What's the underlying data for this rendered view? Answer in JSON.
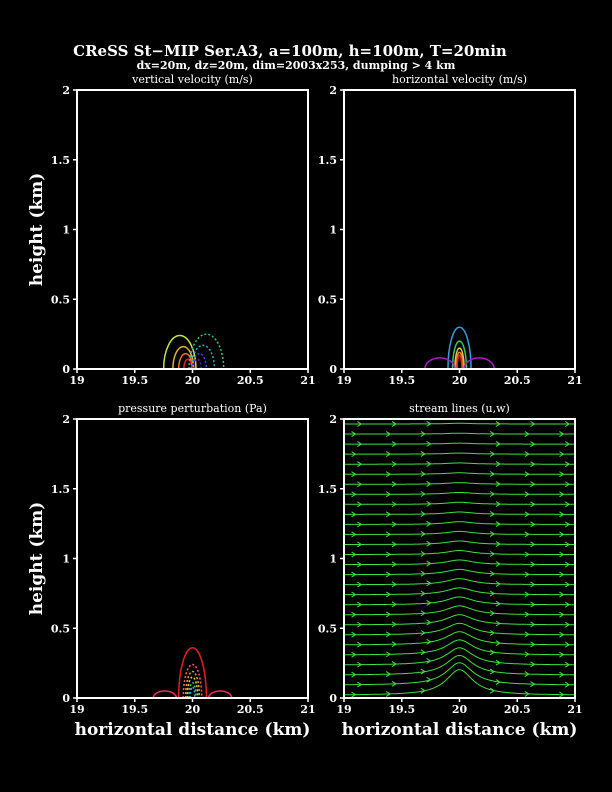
{
  "title": "CReSS St−MIP Ser.A3, a=100m, h=100m, T=20min",
  "subtitle": "dx=20m, dz=20m, dim=2003x253, dumping > 4 km",
  "chart_data": [
    {
      "type": "contour",
      "title": "vertical velocity (m/s)",
      "xlabel": "",
      "ylabel": "height (km)",
      "xlim": [
        19,
        21
      ],
      "ylim": [
        0,
        2
      ],
      "xticks": [
        "19",
        "19.5",
        "20",
        "20.5",
        "21"
      ],
      "yticks": [
        "0",
        "0.5",
        "1",
        "1.5",
        "2"
      ],
      "contours": [
        {
          "cx": 19.89,
          "rx": 0.14,
          "h": 0.24,
          "color": "#c8e640",
          "dash": false
        },
        {
          "cx": 19.92,
          "rx": 0.09,
          "h": 0.16,
          "color": "#e0b040",
          "dash": false
        },
        {
          "cx": 19.94,
          "rx": 0.06,
          "h": 0.11,
          "color": "#f07030",
          "dash": false
        },
        {
          "cx": 19.96,
          "rx": 0.035,
          "h": 0.07,
          "color": "#e02020",
          "dash": false
        },
        {
          "cx": 20.12,
          "rx": 0.15,
          "h": 0.25,
          "color": "#30c080",
          "dash": true
        },
        {
          "cx": 20.09,
          "rx": 0.1,
          "h": 0.17,
          "color": "#30a8c0",
          "dash": true
        },
        {
          "cx": 20.06,
          "rx": 0.06,
          "h": 0.11,
          "color": "#3050e0",
          "dash": true
        },
        {
          "cx": 20.04,
          "rx": 0.035,
          "h": 0.07,
          "color": "#6020c0",
          "dash": true
        }
      ]
    },
    {
      "type": "contour",
      "title": "horizontal velocity (m/s)",
      "xlabel": "",
      "ylabel": "",
      "xlim": [
        19,
        21
      ],
      "ylim": [
        0,
        2
      ],
      "xticks": [
        "19",
        "19.5",
        "20",
        "20.5",
        "21"
      ],
      "yticks": [
        "0",
        "0.5",
        "1",
        "1.5",
        "2"
      ],
      "contours": [
        {
          "cx": 20.0,
          "rx": 0.1,
          "h": 0.3,
          "color": "#30a0e0",
          "dash": false
        },
        {
          "cx": 20.0,
          "rx": 0.06,
          "h": 0.2,
          "color": "#40c060",
          "dash": false
        },
        {
          "cx": 20.0,
          "rx": 0.04,
          "h": 0.15,
          "color": "#d0d040",
          "dash": false
        },
        {
          "cx": 20.0,
          "rx": 0.03,
          "h": 0.12,
          "color": "#f08030",
          "dash": false
        },
        {
          "cx": 20.0,
          "rx": 0.02,
          "h": 0.1,
          "color": "#e02020",
          "dash": false
        },
        {
          "cx": 19.83,
          "rx": 0.13,
          "h": 0.08,
          "color": "#a020c0",
          "dash": false
        },
        {
          "cx": 20.17,
          "rx": 0.13,
          "h": 0.08,
          "color": "#a020c0",
          "dash": false
        }
      ]
    },
    {
      "type": "contour",
      "title": "pressure perturbation (Pa)",
      "xlabel": "horizontal distance (km)",
      "ylabel": "height (km)",
      "xlim": [
        19,
        21
      ],
      "ylim": [
        0,
        2
      ],
      "xticks": [
        "19",
        "19.5",
        "20",
        "20.5",
        "21"
      ],
      "yticks": [
        "0",
        "0.5",
        "1",
        "1.5",
        "2"
      ],
      "contours": [
        {
          "cx": 20.0,
          "rx": 0.12,
          "h": 0.36,
          "color": "#e02020",
          "dash": false
        },
        {
          "cx": 20.0,
          "rx": 0.08,
          "h": 0.24,
          "color": "#f06060",
          "dash": true
        },
        {
          "cx": 20.0,
          "rx": 0.06,
          "h": 0.19,
          "color": "#f0a030",
          "dash": true
        },
        {
          "cx": 20.0,
          "rx": 0.045,
          "h": 0.15,
          "color": "#d0d040",
          "dash": true
        },
        {
          "cx": 20.0,
          "rx": 0.03,
          "h": 0.11,
          "color": "#40c060",
          "dash": true
        },
        {
          "cx": 20.0,
          "rx": 0.02,
          "h": 0.08,
          "color": "#30b0e0",
          "dash": true
        },
        {
          "cx": 19.76,
          "rx": 0.1,
          "h": 0.05,
          "color": "#e03060",
          "dash": false
        },
        {
          "cx": 20.24,
          "rx": 0.1,
          "h": 0.05,
          "color": "#e03060",
          "dash": false
        }
      ]
    },
    {
      "type": "streamline",
      "title": "stream lines (u,w)",
      "xlabel": "horizontal distance (km)",
      "ylabel": "",
      "xlim": [
        19,
        21
      ],
      "ylim": [
        0,
        2
      ],
      "xticks": [
        "19",
        "19.5",
        "20",
        "20.5",
        "21"
      ],
      "yticks": [
        "0",
        "0.5",
        "1",
        "1.5",
        "2"
      ],
      "color": "#40e040",
      "n_lines": 28,
      "z_start": 0.02,
      "z_step": 0.072,
      "bump_height": 0.19,
      "bump_halfwidth": 0.14,
      "bump_decay_km": 0.55,
      "arrow_x": [
        19.1,
        19.4,
        19.7,
        20.3,
        20.6,
        20.9
      ]
    }
  ]
}
